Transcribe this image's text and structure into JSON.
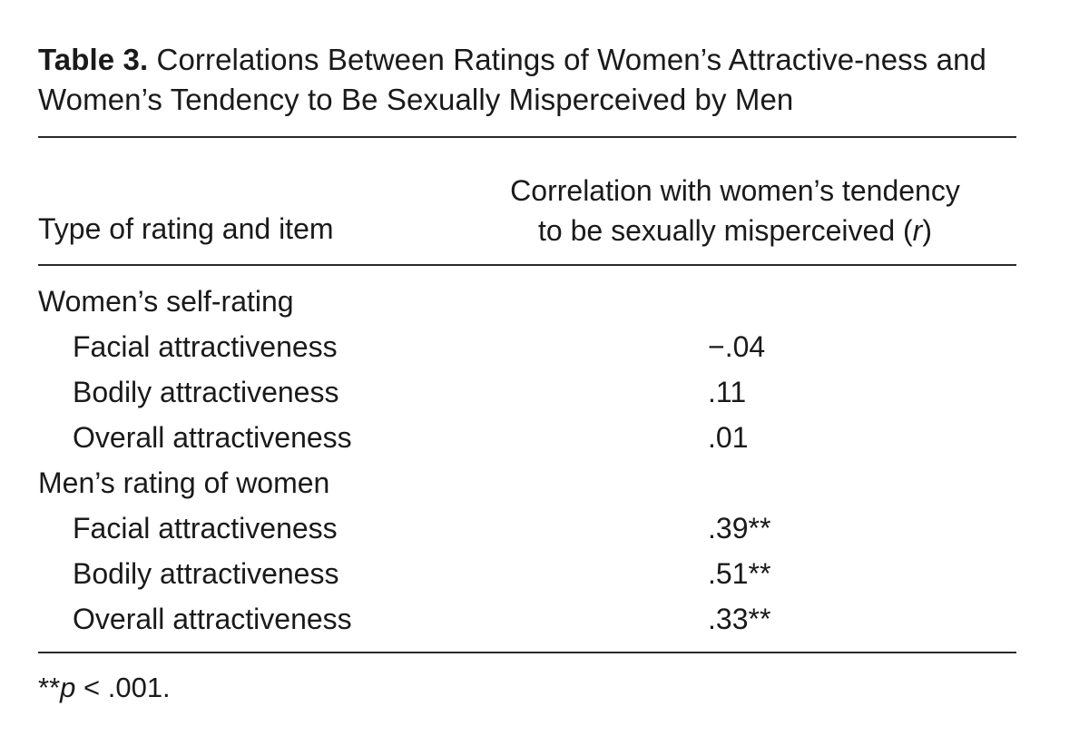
{
  "table": {
    "caption_label": "Table 3.",
    "caption_text": "Correlations Between Ratings of Women’s Attractive-ness and Women’s Tendency to Be Sexually Misperceived by Men",
    "col_left_header": "Type of rating and item",
    "col_right_header_line1": "Correlation with women’s tendency",
    "col_right_header_line2_text": "to be sexually misperceived (",
    "col_right_header_line2_italic": "r",
    "col_right_header_line2_close": ")",
    "groups": [
      {
        "label": "Women’s self-rating",
        "items": [
          {
            "name": "Facial attractiveness",
            "value": "−.04"
          },
          {
            "name": "Bodily attractiveness",
            "value": ".11"
          },
          {
            "name": "Overall attractiveness",
            "value": ".01"
          }
        ]
      },
      {
        "label": "Men’s rating of women",
        "items": [
          {
            "name": "Facial attractiveness",
            "value": ".39**"
          },
          {
            "name": "Bodily attractiveness",
            "value": ".51**"
          },
          {
            "name": "Overall attractiveness",
            "value": ".33**"
          }
        ]
      }
    ],
    "note_prefix": "**",
    "note_italic": "p",
    "note_suffix": " < .001."
  }
}
